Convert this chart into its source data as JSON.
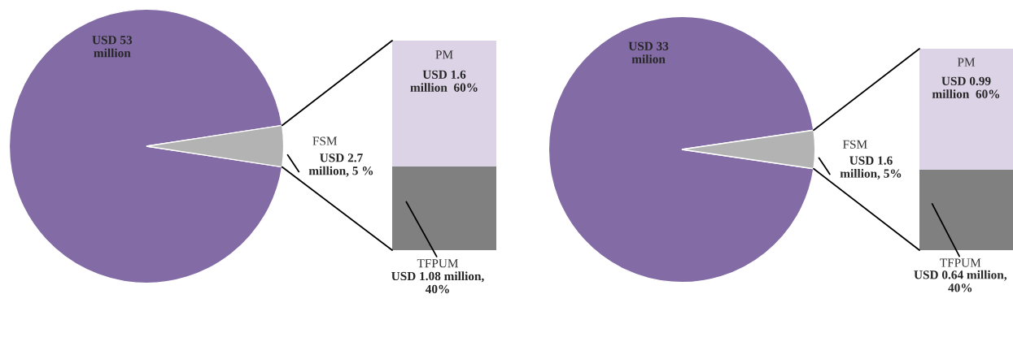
{
  "chart_data": [
    {
      "type": "pie",
      "categories": [
        null,
        "FSM"
      ],
      "values": [
        53,
        2.7
      ],
      "colors": [
        "#836ca6",
        "#b3b3b3"
      ],
      "value_labels": [
        "USD 53\nmillion",
        "USD 2.7\nmillion, 5 %"
      ]
    },
    {
      "type": "bar",
      "stacked": true,
      "categories": [
        null
      ],
      "series": [
        {
          "name": "TFPUM",
          "color": "#808080",
          "values": [
            40
          ],
          "value_labels": [
            "USD 1.08 million,\n40%"
          ]
        },
        {
          "name": "PM",
          "color": "#dcd3e6",
          "values": [
            60
          ],
          "value_labels": [
            "USD 1.6\nmillion  60%"
          ]
        }
      ]
    },
    {
      "type": "pie",
      "categories": [
        null,
        "FSM"
      ],
      "values": [
        33,
        1.6
      ],
      "colors": [
        "#836ca6",
        "#b3b3b3"
      ],
      "value_labels": [
        "USD 33\nmilion",
        "USD 1.6\nmillion, 5%"
      ]
    },
    {
      "type": "bar",
      "stacked": true,
      "categories": [
        null
      ],
      "series": [
        {
          "name": "TFPUM",
          "color": "#808080",
          "values": [
            40
          ],
          "value_labels": [
            "USD 0.64 million,\n40%"
          ]
        },
        {
          "name": "PM",
          "color": "#dcd3e6",
          "values": [
            60
          ],
          "value_labels": [
            "USD 0.99\nmillion  60%"
          ]
        }
      ]
    }
  ]
}
